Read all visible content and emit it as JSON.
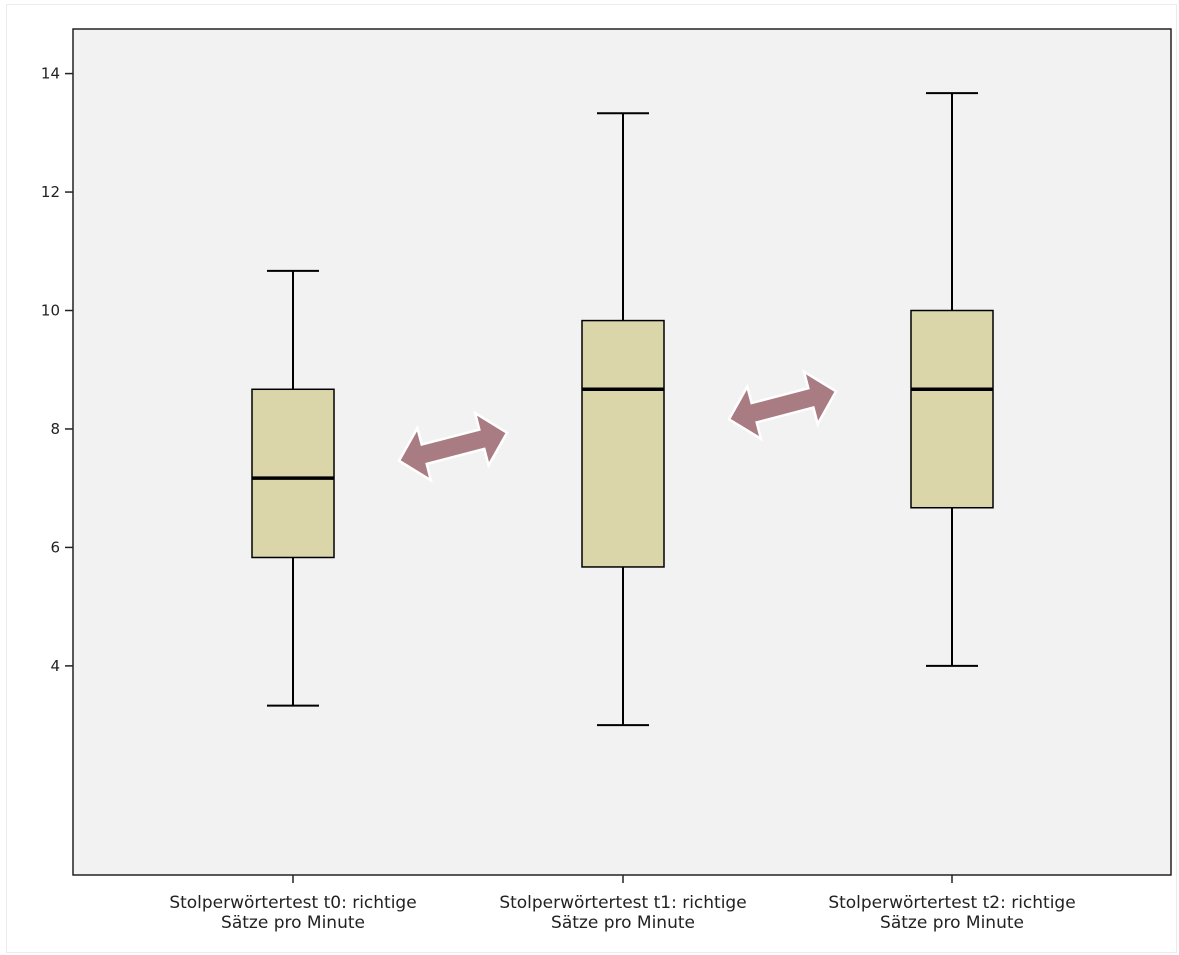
{
  "chart_data": {
    "type": "boxplot",
    "title": "",
    "xlabel": "",
    "ylabel": "",
    "ylim": [
      2.5,
      14.6
    ],
    "yticks": [
      4,
      6,
      8,
      10,
      12,
      14
    ],
    "grid": false,
    "legend": "none",
    "categories": [
      {
        "line1": "Stolperwörtertest t0: richtige",
        "line2": "Sätze pro Minute"
      },
      {
        "line1": "Stolperwörtertest t1: richtige",
        "line2": "Sätze pro Minute"
      },
      {
        "line1": "Stolperwörtertest t2: richtige",
        "line2": "Sätze pro Minute"
      }
    ],
    "boxes": [
      {
        "min": 3.33,
        "q1": 5.83,
        "median": 7.17,
        "q3": 8.67,
        "max": 10.67
      },
      {
        "min": 3.0,
        "q1": 5.67,
        "median": 8.67,
        "q3": 9.83,
        "max": 13.33
      },
      {
        "min": 4.0,
        "q1": 6.67,
        "median": 8.67,
        "q3": 10.0,
        "max": 13.67
      }
    ],
    "annotations": [
      {
        "type": "double-arrow",
        "between": [
          0,
          1
        ],
        "level": 7.7
      },
      {
        "type": "double-arrow",
        "between": [
          1,
          2
        ],
        "level": 8.4
      }
    ],
    "colors": {
      "plot_bg": "#f2f2f2",
      "box_fill": "#dbd6a9",
      "stroke": "#000000",
      "arrow": "#a97b82"
    }
  }
}
